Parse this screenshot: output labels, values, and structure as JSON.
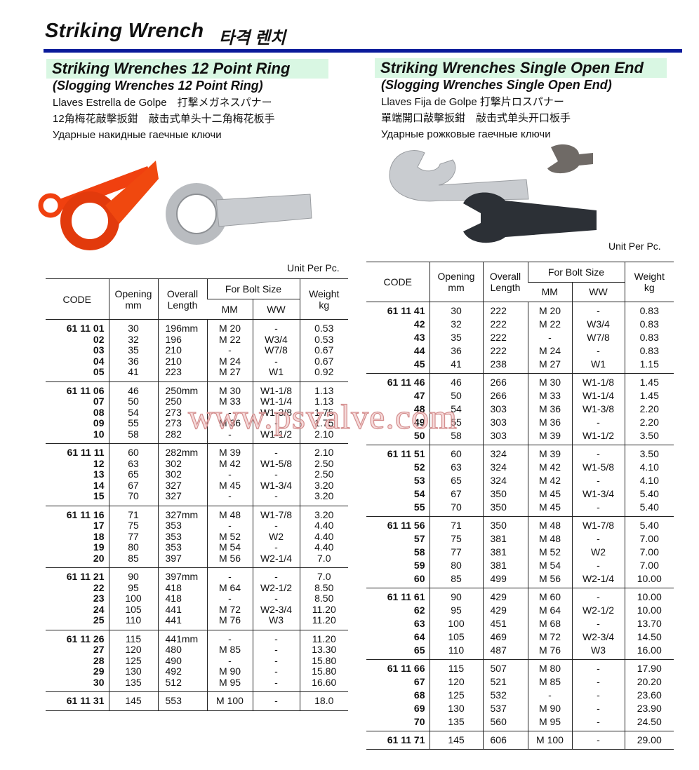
{
  "page": {
    "title": "Striking Wrench",
    "title_kr": "타격 렌치",
    "accent": "#0a1a9a",
    "highlight": "#d9f7e3"
  },
  "watermark": "www.psvalve.com",
  "left": {
    "heading": "Striking Wrenches 12 Point Ring",
    "subheading": "(Slogging Wrenches 12 Point Ring)",
    "lines": [
      "Llaves Estrella de Golpe　打撃メガネスパナー",
      "12角梅花敲擊扳鉗　敲击式单头十二角梅花板手",
      "Ударные накидные гаечные ключи"
    ],
    "unit": "Unit Per Pc.",
    "headers": {
      "code": "CODE",
      "opening": "Opening\nmm",
      "overall": "Overall\nLength",
      "bolt": "For Bolt Size",
      "mm": "MM",
      "ww": "WW",
      "weight": "Weight\nkg"
    },
    "groups": [
      [
        [
          "61 11 01",
          "30",
          "196mm",
          "M 20",
          "-",
          "0.53"
        ],
        [
          "02",
          "32",
          "196",
          "M 22",
          "W3/4",
          "0.53"
        ],
        [
          "03",
          "35",
          "210",
          "-",
          "W7/8",
          "0.67"
        ],
        [
          "04",
          "36",
          "210",
          "M 24",
          "-",
          "0.67"
        ],
        [
          "05",
          "41",
          "223",
          "M 27",
          "W1",
          "0.92"
        ]
      ],
      [
        [
          "61 11 06",
          "46",
          "250mm",
          "M 30",
          "W1-1/8",
          "1.13"
        ],
        [
          "07",
          "50",
          "250",
          "M 33",
          "W1-1/4",
          "1.13"
        ],
        [
          "08",
          "54",
          "273",
          "-",
          "W1-3/8",
          "1.75"
        ],
        [
          "09",
          "55",
          "273",
          "M 36",
          "-",
          "1.75"
        ],
        [
          "10",
          "58",
          "282",
          "-",
          "W1-1/2",
          "2.10"
        ]
      ],
      [
        [
          "61 11 11",
          "60",
          "282mm",
          "M 39",
          "-",
          "2.10"
        ],
        [
          "12",
          "63",
          "302",
          "M 42",
          "W1-5/8",
          "2.50"
        ],
        [
          "13",
          "65",
          "302",
          "-",
          "-",
          "2.50"
        ],
        [
          "14",
          "67",
          "327",
          "M 45",
          "W1-3/4",
          "3.20"
        ],
        [
          "15",
          "70",
          "327",
          "-",
          "-",
          "3.20"
        ]
      ],
      [
        [
          "61 11 16",
          "71",
          "327mm",
          "M 48",
          "W1-7/8",
          "3.20"
        ],
        [
          "17",
          "75",
          "353",
          "-",
          "-",
          "4.40"
        ],
        [
          "18",
          "77",
          "353",
          "M 52",
          "W2",
          "4.40"
        ],
        [
          "19",
          "80",
          "353",
          "M 54",
          "-",
          "4.40"
        ],
        [
          "20",
          "85",
          "397",
          "M 56",
          "W2-1/4",
          "7.0"
        ]
      ],
      [
        [
          "61 11 21",
          "90",
          "397mm",
          "-",
          "-",
          "7.0"
        ],
        [
          "22",
          "95",
          "418",
          "M 64",
          "W2-1/2",
          "8.50"
        ],
        [
          "23",
          "100",
          "418",
          "-",
          "-",
          "8.50"
        ],
        [
          "24",
          "105",
          "441",
          "M 72",
          "W2-3/4",
          "11.20"
        ],
        [
          "25",
          "110",
          "441",
          "M 76",
          "W3",
          "11.20"
        ]
      ],
      [
        [
          "61 11 26",
          "115",
          "441mm",
          "-",
          "-",
          "11.20"
        ],
        [
          "27",
          "120",
          "480",
          "M 85",
          "-",
          "13.30"
        ],
        [
          "28",
          "125",
          "490",
          "-",
          "-",
          "15.80"
        ],
        [
          "29",
          "130",
          "492",
          "M 90",
          "-",
          "15.80"
        ],
        [
          "30",
          "135",
          "512",
          "M 95",
          "-",
          "16.60"
        ]
      ],
      [
        [
          "61 11 31",
          "145",
          "553",
          "M 100",
          "-",
          "18.0"
        ]
      ]
    ]
  },
  "right": {
    "heading": "Striking Wrenches Single Open End",
    "subheading": "(Slogging Wrenches Single Open End)",
    "lines": [
      "Llaves Fija de Golpe 打撃片ロスパナー",
      "單端開口敲擊扳鉗　敲击式单头开口板手",
      "Ударные рожковые гаечные ключи"
    ],
    "unit": "Unit Per Pc.",
    "headers": {
      "code": "CODE",
      "opening": "Opening\nmm",
      "overall": "Overall\nLength",
      "bolt": "For Bolt Size",
      "mm": "MM",
      "ww": "WW",
      "weight": "Weight\nkg"
    },
    "groups": [
      [
        [
          "61 11 41",
          "30",
          "222",
          "M 20",
          "-",
          "0.83"
        ],
        [
          "42",
          "32",
          "222",
          "M 22",
          "W3/4",
          "0.83"
        ],
        [
          "43",
          "35",
          "222",
          "-",
          "W7/8",
          "0.83"
        ],
        [
          "44",
          "36",
          "222",
          "M 24",
          "-",
          "0.83"
        ],
        [
          "45",
          "41",
          "238",
          "M 27",
          "W1",
          "1.15"
        ]
      ],
      [
        [
          "61 11 46",
          "46",
          "266",
          "M 30",
          "W1-1/8",
          "1.45"
        ],
        [
          "47",
          "50",
          "266",
          "M 33",
          "W1-1/4",
          "1.45"
        ],
        [
          "48",
          "54",
          "303",
          "M 36",
          "W1-3/8",
          "2.20"
        ],
        [
          "49",
          "55",
          "303",
          "M 36",
          "-",
          "2.20"
        ],
        [
          "50",
          "58",
          "303",
          "M 39",
          "W1-1/2",
          "3.50"
        ]
      ],
      [
        [
          "61 11 51",
          "60",
          "324",
          "M 39",
          "-",
          "3.50"
        ],
        [
          "52",
          "63",
          "324",
          "M 42",
          "W1-5/8",
          "4.10"
        ],
        [
          "53",
          "65",
          "324",
          "M 42",
          "-",
          "4.10"
        ],
        [
          "54",
          "67",
          "350",
          "M 45",
          "W1-3/4",
          "5.40"
        ],
        [
          "55",
          "70",
          "350",
          "M 45",
          "-",
          "5.40"
        ]
      ],
      [
        [
          "61 11 56",
          "71",
          "350",
          "M 48",
          "W1-7/8",
          "5.40"
        ],
        [
          "57",
          "75",
          "381",
          "M 48",
          "-",
          "7.00"
        ],
        [
          "58",
          "77",
          "381",
          "M 52",
          "W2",
          "7.00"
        ],
        [
          "59",
          "80",
          "381",
          "M 54",
          "-",
          "7.00"
        ],
        [
          "60",
          "85",
          "499",
          "M 56",
          "W2-1/4",
          "10.00"
        ]
      ],
      [
        [
          "61 11 61",
          "90",
          "429",
          "M 60",
          "-",
          "10.00"
        ],
        [
          "62",
          "95",
          "429",
          "M 64",
          "W2-1/2",
          "10.00"
        ],
        [
          "63",
          "100",
          "451",
          "M 68",
          "-",
          "13.70"
        ],
        [
          "64",
          "105",
          "469",
          "M 72",
          "W2-3/4",
          "14.50"
        ],
        [
          "65",
          "110",
          "487",
          "M 76",
          "W3",
          "16.00"
        ]
      ],
      [
        [
          "61 11 66",
          "115",
          "507",
          "M 80",
          "-",
          "17.90"
        ],
        [
          "67",
          "120",
          "521",
          "M 85",
          "-",
          "20.20"
        ],
        [
          "68",
          "125",
          "532",
          "-",
          "-",
          "23.60"
        ],
        [
          "69",
          "130",
          "537",
          "M 90",
          "-",
          "23.90"
        ],
        [
          "70",
          "135",
          "560",
          "M 95",
          "-",
          "24.50"
        ]
      ],
      [
        [
          "61 11 71",
          "145",
          "606",
          "M 100",
          "-",
          "29.00"
        ]
      ]
    ]
  }
}
